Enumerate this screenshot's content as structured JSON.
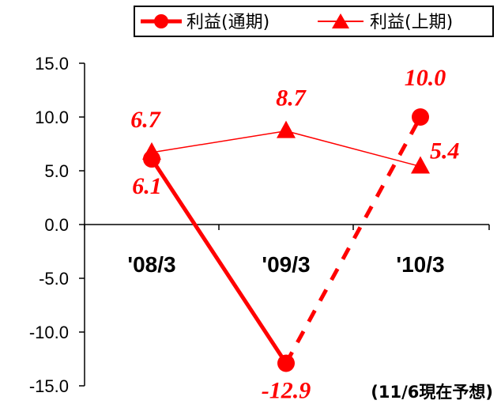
{
  "chart_data": {
    "type": "line",
    "categories": [
      "'08/3",
      "'09/3",
      "'10/3"
    ],
    "ylim": [
      -15,
      15
    ],
    "yticks": [
      "15.0",
      "10.0",
      "5.0",
      "0.0",
      "-5.0",
      "-10.0",
      "-15.0"
    ],
    "grid": false,
    "legend_position": "top-right",
    "series": [
      {
        "name": "利益(通期)",
        "values": [
          6.1,
          -12.9,
          10.0
        ],
        "labels": [
          "6.1",
          "-12.9",
          "10.0"
        ],
        "marker": "circle",
        "style": "solid-then-dashed-forecast"
      },
      {
        "name": "利益(上期)",
        "values": [
          6.7,
          8.7,
          5.4
        ],
        "labels": [
          "6.7",
          "8.7",
          "5.4"
        ],
        "marker": "triangle",
        "style": "thin"
      }
    ],
    "annotation": "(11/6現在予想)"
  },
  "colors": {
    "series": "#ff0000",
    "axis": "#000000"
  }
}
